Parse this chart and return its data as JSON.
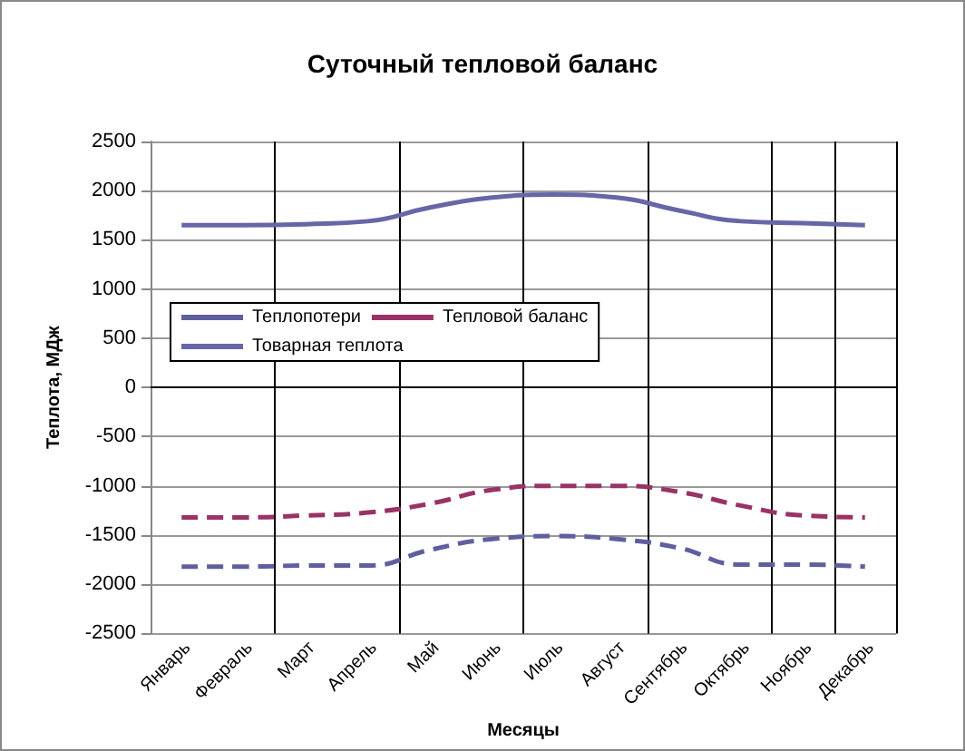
{
  "chart_data": {
    "type": "line",
    "title": "Суточный тепловой баланс",
    "xlabel": "Месяцы",
    "ylabel": "Теплота, МДж",
    "categories": [
      "Январь",
      "Февраль",
      "Март",
      "Апрель",
      "Май",
      "Июнь",
      "Июль",
      "Август",
      "Сентябрь",
      "Октябрь",
      "Ноябрь",
      "Декабрь"
    ],
    "series": [
      {
        "name": "Теплопотери",
        "color": "#5f5f9f",
        "line_style": "dashed",
        "values": [
          -1820,
          -1820,
          -1810,
          -1810,
          -1650,
          -1540,
          -1510,
          -1540,
          -1630,
          -1800,
          -1800,
          -1820
        ]
      },
      {
        "name": "Тепловой баланс",
        "color": "#993366",
        "line_style": "dashed",
        "values": [
          -1320,
          -1320,
          -1300,
          -1270,
          -1180,
          -1040,
          -1000,
          -1000,
          -1060,
          -1200,
          -1300,
          -1320
        ]
      },
      {
        "name": "Товарная теплота",
        "color": "#6666a8",
        "line_style": "solid",
        "values": [
          1650,
          1650,
          1660,
          1690,
          1830,
          1930,
          1960,
          1930,
          1800,
          1690,
          1670,
          1650
        ]
      }
    ],
    "ylim": [
      -2500,
      2500
    ],
    "yticks": [
      -2500,
      -2000,
      -1500,
      -1000,
      -500,
      0,
      500,
      1000,
      1500,
      2000,
      2500
    ],
    "grid": true,
    "legend": "center",
    "marker": "none"
  }
}
